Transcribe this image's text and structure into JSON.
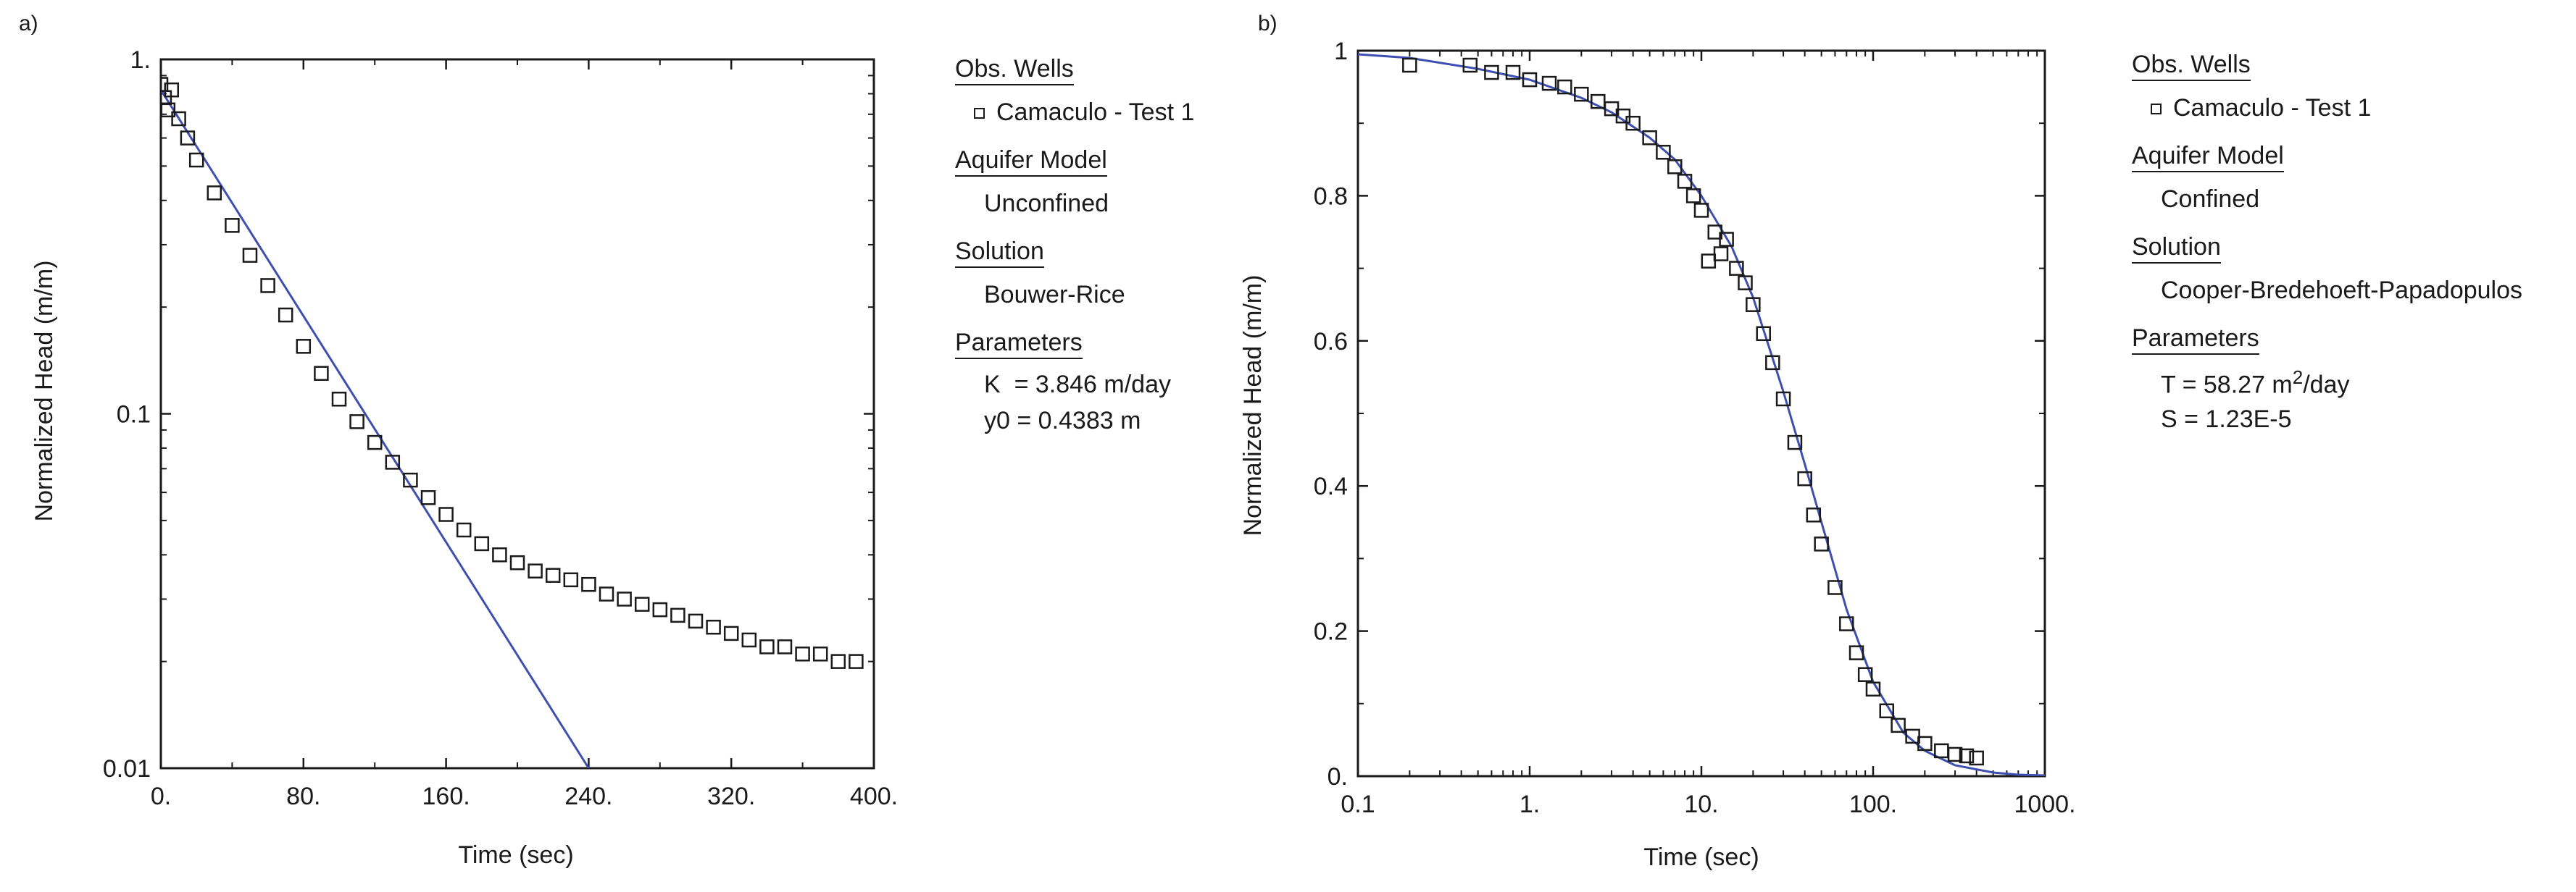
{
  "chart_data": [
    {
      "type": "scatter",
      "panel_label": "a)",
      "xlabel": "Time (sec)",
      "ylabel": "Normalized Head (m/m)",
      "xscale": "linear",
      "yscale": "log",
      "xlim": [
        0,
        400
      ],
      "ylim": [
        0.01,
        1
      ],
      "x_ticks": [
        "0.",
        "80.",
        "160.",
        "240.",
        "320.",
        "400."
      ],
      "y_ticks": [
        "1.",
        "0.1",
        "0.01"
      ],
      "series": [
        {
          "kind": "observed",
          "marker": "open-square",
          "color": "#1a1a1a",
          "x": [
            0,
            2,
            4,
            6,
            10,
            15,
            20,
            30,
            40,
            50,
            60,
            70,
            80,
            90,
            100,
            110,
            120,
            130,
            140,
            150,
            160,
            170,
            180,
            190,
            200,
            210,
            220,
            230,
            240,
            250,
            260,
            270,
            280,
            290,
            300,
            310,
            320,
            330,
            340,
            350,
            360,
            370,
            380,
            390
          ],
          "y": [
            0.85,
            0.78,
            0.72,
            0.82,
            0.68,
            0.6,
            0.52,
            0.42,
            0.34,
            0.28,
            0.23,
            0.19,
            0.155,
            0.13,
            0.11,
            0.095,
            0.083,
            0.073,
            0.065,
            0.058,
            0.052,
            0.047,
            0.043,
            0.04,
            0.038,
            0.036,
            0.035,
            0.034,
            0.033,
            0.031,
            0.03,
            0.029,
            0.028,
            0.027,
            0.026,
            0.025,
            0.024,
            0.023,
            0.022,
            0.022,
            0.021,
            0.021,
            0.02,
            0.02
          ]
        },
        {
          "kind": "fitted",
          "color": "#3f4fb0",
          "x": [
            0,
            240
          ],
          "y": [
            0.82,
            0.01
          ]
        }
      ]
    },
    {
      "type": "scatter",
      "panel_label": "b)",
      "xlabel": "Time (sec)",
      "ylabel": "Normalized Head (m/m)",
      "xscale": "log",
      "yscale": "linear",
      "xlim": [
        0.1,
        1000
      ],
      "ylim": [
        0,
        1
      ],
      "x_ticks": [
        "0.1",
        "1.",
        "10.",
        "100.",
        "1000."
      ],
      "y_ticks": [
        "1",
        "0.8",
        "0.6",
        "0.4",
        "0.2",
        "0."
      ],
      "series": [
        {
          "kind": "observed",
          "marker": "open-square",
          "color": "#1a1a1a",
          "x": [
            0.2,
            0.45,
            0.6,
            0.8,
            1,
            1.3,
            1.6,
            2,
            2.5,
            3,
            3.5,
            4,
            5,
            6,
            7,
            8,
            9,
            10,
            11,
            12,
            13,
            14,
            16,
            18,
            20,
            23,
            26,
            30,
            35,
            40,
            45,
            50,
            60,
            70,
            80,
            90,
            100,
            120,
            140,
            170,
            200,
            250,
            300,
            350,
            400
          ],
          "y": [
            0.98,
            0.98,
            0.97,
            0.97,
            0.96,
            0.955,
            0.95,
            0.94,
            0.93,
            0.92,
            0.91,
            0.9,
            0.88,
            0.86,
            0.84,
            0.82,
            0.8,
            0.78,
            0.71,
            0.75,
            0.72,
            0.74,
            0.7,
            0.68,
            0.65,
            0.61,
            0.57,
            0.52,
            0.46,
            0.41,
            0.36,
            0.32,
            0.26,
            0.21,
            0.17,
            0.14,
            0.12,
            0.09,
            0.07,
            0.055,
            0.045,
            0.035,
            0.03,
            0.028,
            0.025
          ]
        },
        {
          "kind": "fitted",
          "color": "#3f4fb0",
          "x": [
            0.1,
            0.2,
            0.5,
            1,
            2,
            3,
            5,
            7,
            10,
            15,
            20,
            30,
            40,
            50,
            70,
            100,
            150,
            200,
            300,
            500,
            700,
            1000
          ],
          "y": [
            0.995,
            0.99,
            0.975,
            0.96,
            0.935,
            0.915,
            0.88,
            0.85,
            0.8,
            0.73,
            0.66,
            0.53,
            0.43,
            0.35,
            0.23,
            0.13,
            0.06,
            0.035,
            0.015,
            0.005,
            0.002,
            0.001
          ]
        }
      ]
    }
  ],
  "legends": [
    {
      "obs_header": "Obs. Wells",
      "obs_item": "Camaculo - Test 1",
      "model_header": "Aquifer Model",
      "model_value": "Unconfined",
      "solution_header": "Solution",
      "solution_value": "Bouwer-Rice",
      "params_header": "Parameters",
      "param_1": "K  = 3.846 m/day",
      "param_2": "y0 = 0.4383 m"
    },
    {
      "obs_header": "Obs. Wells",
      "obs_item": "Camaculo - Test 1",
      "model_header": "Aquifer Model",
      "model_value": "Confined",
      "solution_header": "Solution",
      "solution_value": "Cooper-Bredehoeft-Papadopulos",
      "params_header": "Parameters",
      "param_1_prefix": "T = 58.27 m",
      "param_1_sup": "2",
      "param_1_suffix": "/day",
      "param_2": "S = 1.23E-5"
    }
  ]
}
